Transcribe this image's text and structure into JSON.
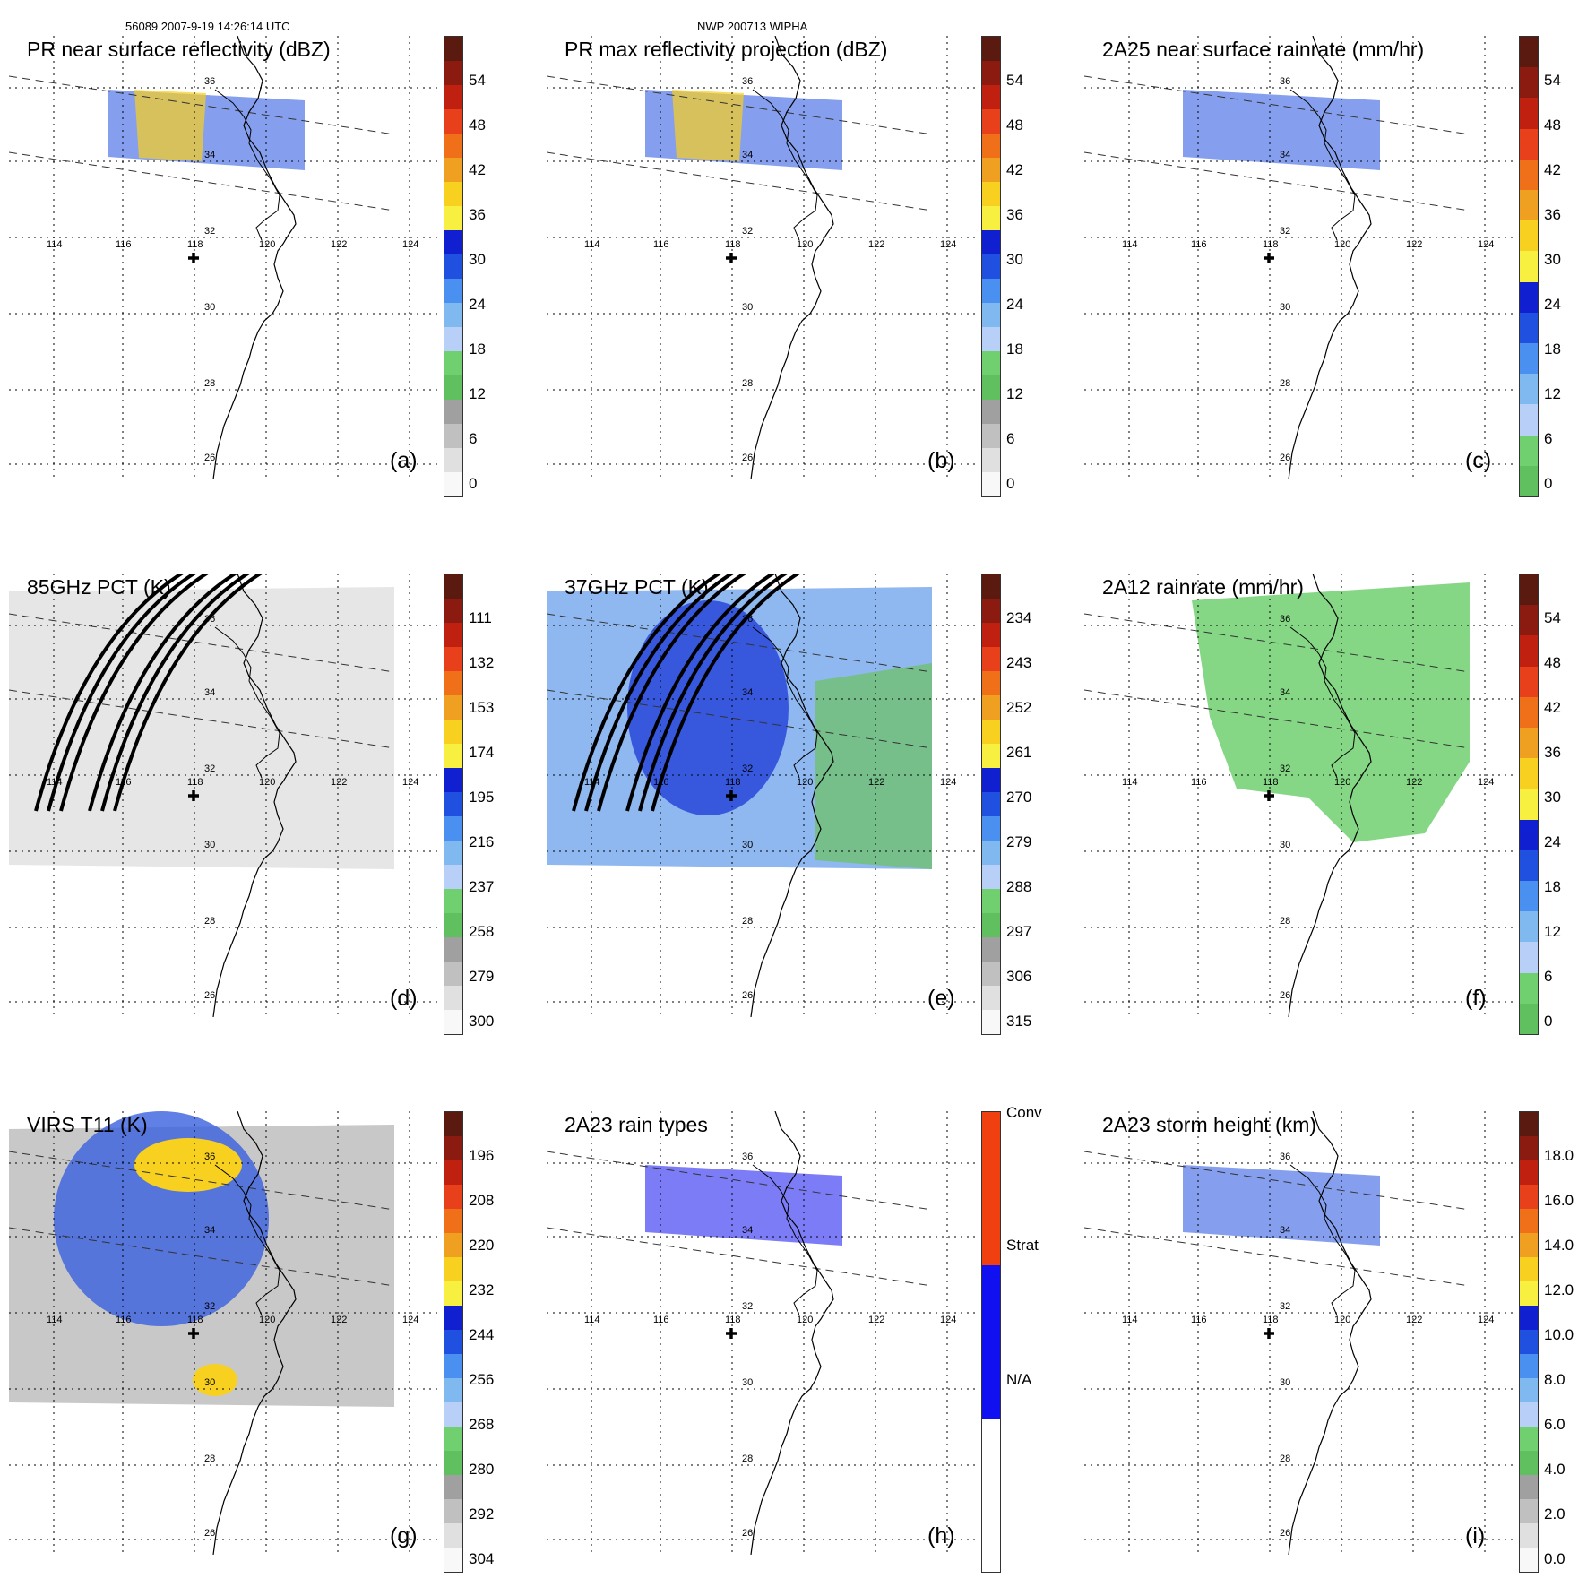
{
  "header": {
    "left": "56089 2007-9-19 14:26:14 UTC",
    "center": "NWP 200713 WIPHA"
  },
  "map": {
    "lon_labels": [
      "114",
      "116",
      "118",
      "120",
      "122",
      "124"
    ],
    "lat_labels": [
      "36",
      "34",
      "32",
      "30",
      "28",
      "26"
    ],
    "center_marker": "plus"
  },
  "panels": [
    {
      "id": "a",
      "title": "PR near surface reflectivity (dBZ)",
      "label": "(a)",
      "colors": [
        "#5a1a10",
        "#8b1a10",
        "#c02010",
        "#e8401a",
        "#f0701a",
        "#f0a020",
        "#f8d020",
        "#f8f040",
        "#1020d0",
        "#2050e0",
        "#4a90f0",
        "#80b8f0",
        "#b8d0f8",
        "#70d070",
        "#60c060",
        "#a0a0a0",
        "#c0c0c0",
        "#e0e0e0",
        "#f8f8f8"
      ],
      "ticks": [
        "54",
        "48",
        "42",
        "36",
        "30",
        "24",
        "18",
        "12",
        "6",
        "0"
      ]
    },
    {
      "id": "b",
      "title": "PR max reflectivity projection (dBZ)",
      "label": "(b)",
      "colors": [
        "#5a1a10",
        "#8b1a10",
        "#c02010",
        "#e8401a",
        "#f0701a",
        "#f0a020",
        "#f8d020",
        "#f8f040",
        "#1020d0",
        "#2050e0",
        "#4a90f0",
        "#80b8f0",
        "#b8d0f8",
        "#70d070",
        "#60c060",
        "#a0a0a0",
        "#c0c0c0",
        "#e0e0e0",
        "#f8f8f8"
      ],
      "ticks": [
        "54",
        "48",
        "42",
        "36",
        "30",
        "24",
        "18",
        "12",
        "6",
        "0"
      ]
    },
    {
      "id": "c",
      "title": "2A25 near surface rainrate (mm/hr)",
      "label": "(c)",
      "colors": [
        "#5a1a10",
        "#8b1a10",
        "#c02010",
        "#e8401a",
        "#f0701a",
        "#f0a020",
        "#f8d020",
        "#f8f040",
        "#1020d0",
        "#2050e0",
        "#4a90f0",
        "#80b8f0",
        "#b8d0f8",
        "#70d070",
        "#60c060"
      ],
      "ticks": [
        "54",
        "48",
        "42",
        "36",
        "30",
        "24",
        "18",
        "12",
        "6",
        "0"
      ]
    },
    {
      "id": "d",
      "title": "85GHz PCT (K)",
      "label": "(d)",
      "colors": [
        "#5a1a10",
        "#8b1a10",
        "#c02010",
        "#e8401a",
        "#f0701a",
        "#f0a020",
        "#f8d020",
        "#f8f040",
        "#1020d0",
        "#2050e0",
        "#4a90f0",
        "#80b8f0",
        "#b8d0f8",
        "#70d070",
        "#60c060",
        "#a0a0a0",
        "#c0c0c0",
        "#e0e0e0",
        "#f8f8f8"
      ],
      "ticks": [
        "111",
        "132",
        "153",
        "174",
        "195",
        "216",
        "237",
        "258",
        "279",
        "300"
      ]
    },
    {
      "id": "e",
      "title": "37GHz PCT (K)",
      "label": "(e)",
      "colors": [
        "#5a1a10",
        "#8b1a10",
        "#c02010",
        "#e8401a",
        "#f0701a",
        "#f0a020",
        "#f8d020",
        "#f8f040",
        "#1020d0",
        "#2050e0",
        "#4a90f0",
        "#80b8f0",
        "#b8d0f8",
        "#70d070",
        "#60c060",
        "#a0a0a0",
        "#c0c0c0",
        "#e0e0e0",
        "#f8f8f8"
      ],
      "ticks": [
        "234",
        "243",
        "252",
        "261",
        "270",
        "279",
        "288",
        "297",
        "306",
        "315"
      ]
    },
    {
      "id": "f",
      "title": "2A12 rainrate (mm/hr)",
      "label": "(f)",
      "colors": [
        "#5a1a10",
        "#8b1a10",
        "#c02010",
        "#e8401a",
        "#f0701a",
        "#f0a020",
        "#f8d020",
        "#f8f040",
        "#1020d0",
        "#2050e0",
        "#4a90f0",
        "#80b8f0",
        "#b8d0f8",
        "#70d070",
        "#60c060"
      ],
      "ticks": [
        "54",
        "48",
        "42",
        "36",
        "30",
        "24",
        "18",
        "12",
        "6",
        "0"
      ]
    },
    {
      "id": "g",
      "title": "VIRS T11 (K)",
      "label": "(g)",
      "colors": [
        "#5a1a10",
        "#8b1a10",
        "#c02010",
        "#e8401a",
        "#f0701a",
        "#f0a020",
        "#f8d020",
        "#f8f040",
        "#1020d0",
        "#2050e0",
        "#4a90f0",
        "#80b8f0",
        "#b8d0f8",
        "#70d070",
        "#60c060",
        "#a0a0a0",
        "#c0c0c0",
        "#e0e0e0",
        "#f8f8f8"
      ],
      "ticks": [
        "196",
        "208",
        "220",
        "232",
        "244",
        "256",
        "268",
        "280",
        "292",
        "304"
      ]
    },
    {
      "id": "h",
      "title": "2A23 rain types",
      "label": "(h)",
      "colors": [
        "#f04010",
        "#1010f0",
        "#ffffff"
      ],
      "ticks": [
        "Conv",
        "Strat",
        "N/A"
      ]
    },
    {
      "id": "i",
      "title": "2A23 storm height (km)",
      "label": "(i)",
      "colors": [
        "#5a1a10",
        "#8b1a10",
        "#c02010",
        "#e8401a",
        "#f0701a",
        "#f0a020",
        "#f8d020",
        "#f8f040",
        "#1020d0",
        "#2050e0",
        "#4a90f0",
        "#80b8f0",
        "#b8d0f8",
        "#70d070",
        "#60c060",
        "#a0a0a0",
        "#c0c0c0",
        "#e0e0e0",
        "#f8f8f8"
      ],
      "ticks": [
        "18.0",
        "16.0",
        "14.0",
        "12.0",
        "10.0",
        "8.0",
        "6.0",
        "4.0",
        "2.0",
        "0.0"
      ]
    }
  ]
}
